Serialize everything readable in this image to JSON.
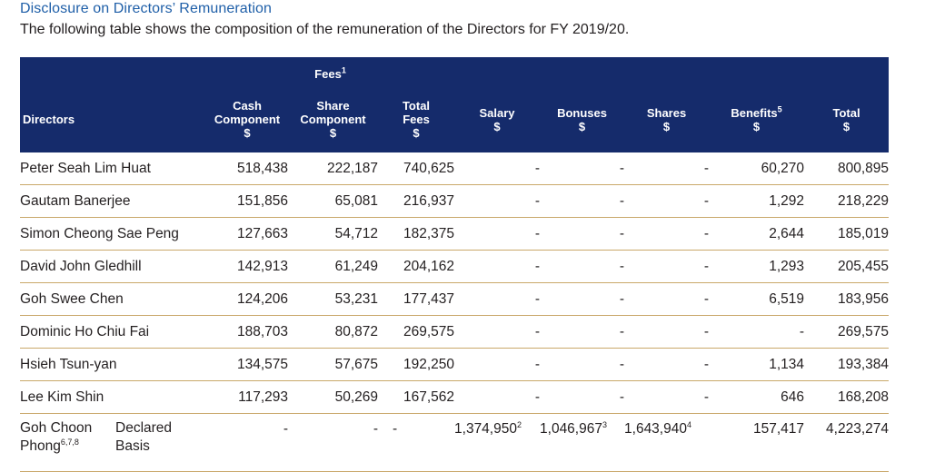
{
  "heading": "Disclosure on Directors’ Remuneration",
  "subheading": "The following table shows the composition of the remuneration of the Directors for FY 2019/20.",
  "header": {
    "fees_group": "Fees",
    "fees_group_note": "1",
    "directors": "Directors",
    "cash_l1": "Cash",
    "cash_l2": "Component",
    "cash_unit": "$",
    "share_l1": "Share",
    "share_l2": "Component",
    "share_unit": "$",
    "total_fees_l1": "Total",
    "total_fees_l2": "Fees",
    "total_fees_unit": "$",
    "salary": "Salary",
    "salary_unit": "$",
    "bonuses": "Bonuses",
    "bonuses_unit": "$",
    "shares": "Shares",
    "shares_unit": "$",
    "benefits": "Benefits",
    "benefits_note": "5",
    "benefits_unit": "$",
    "total": "Total",
    "total_unit": "$"
  },
  "rows": [
    {
      "name": "Peter Seah Lim Huat",
      "cash": "518,438",
      "share": "222,187",
      "total_fees": "740,625",
      "salary": "-",
      "bonuses": "-",
      "shares": "-",
      "benefits": "60,270",
      "total": "800,895"
    },
    {
      "name": "Gautam Banerjee",
      "cash": "151,856",
      "share": "65,081",
      "total_fees": "216,937",
      "salary": "-",
      "bonuses": "-",
      "shares": "-",
      "benefits": "1,292",
      "total": "218,229"
    },
    {
      "name": "Simon Cheong Sae Peng",
      "cash": "127,663",
      "share": "54,712",
      "total_fees": "182,375",
      "salary": "-",
      "bonuses": "-",
      "shares": "-",
      "benefits": "2,644",
      "total": "185,019"
    },
    {
      "name": "David John Gledhill",
      "cash": "142,913",
      "share": "61,249",
      "total_fees": "204,162",
      "salary": "-",
      "bonuses": "-",
      "shares": "-",
      "benefits": "1,293",
      "total": "205,455"
    },
    {
      "name": "Goh Swee Chen",
      "cash": "124,206",
      "share": "53,231",
      "total_fees": "177,437",
      "salary": "-",
      "bonuses": "-",
      "shares": "-",
      "benefits": "6,519",
      "total": "183,956"
    },
    {
      "name": "Dominic Ho Chiu Fai",
      "cash": "188,703",
      "share": "80,872",
      "total_fees": "269,575",
      "salary": "-",
      "bonuses": "-",
      "shares": "-",
      "benefits": "-",
      "total": "269,575"
    },
    {
      "name": "Hsieh Tsun-yan",
      "cash": "134,575",
      "share": "57,675",
      "total_fees": "192,250",
      "salary": "-",
      "bonuses": "-",
      "shares": "-",
      "benefits": "1,134",
      "total": "193,384"
    },
    {
      "name": "Lee Kim Shin",
      "cash": "117,293",
      "share": "50,269",
      "total_fees": "167,562",
      "salary": "-",
      "bonuses": "-",
      "shares": "-",
      "benefits": "646",
      "total": "168,208"
    }
  ],
  "last_row": {
    "name_l1": "Goh Choon",
    "name_l2": "Phong",
    "name_note": "6,7,8",
    "basis_l1": "Declared",
    "basis_l2": "Basis",
    "cash": "-",
    "share": "-",
    "total_fees": "-",
    "salary": "1,374,950",
    "salary_note": "2",
    "bonuses": "1,046,967",
    "bonuses_note": "3",
    "shares": "1,643,940",
    "shares_note": "4",
    "benefits": "157,417",
    "total": "4,223,274"
  }
}
